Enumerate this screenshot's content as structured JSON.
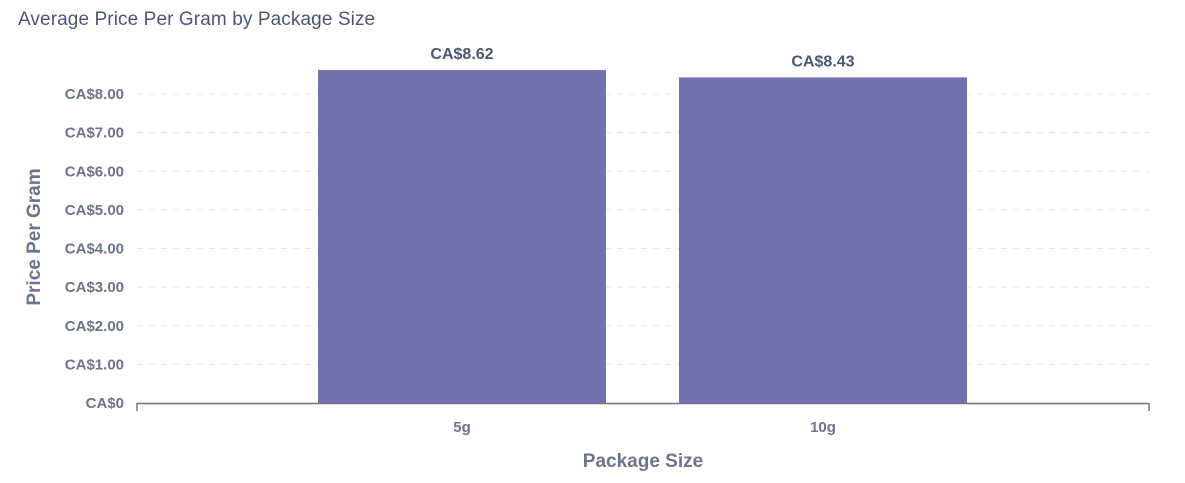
{
  "chart_data": {
    "type": "bar",
    "title": "Average Price Per Gram by Package Size",
    "xlabel": "Package Size",
    "ylabel": "Price Per Gram",
    "categories": [
      "5g",
      "10g"
    ],
    "values": [
      8.62,
      8.43
    ],
    "value_labels": [
      "CA$8.62",
      "CA$8.43"
    ],
    "ylim": [
      0,
      8.8
    ],
    "yticks": [
      0,
      1,
      2,
      3,
      4,
      5,
      6,
      7,
      8
    ],
    "ytick_labels": [
      "CA$0",
      "CA$1.00",
      "CA$2.00",
      "CA$3.00",
      "CA$4.00",
      "CA$5.00",
      "CA$6.00",
      "CA$7.00",
      "CA$8.00"
    ],
    "grid": true,
    "bar_color": "#7172ad",
    "gridline_color": "#e6e8ec",
    "axis_color": "#6c7489"
  }
}
